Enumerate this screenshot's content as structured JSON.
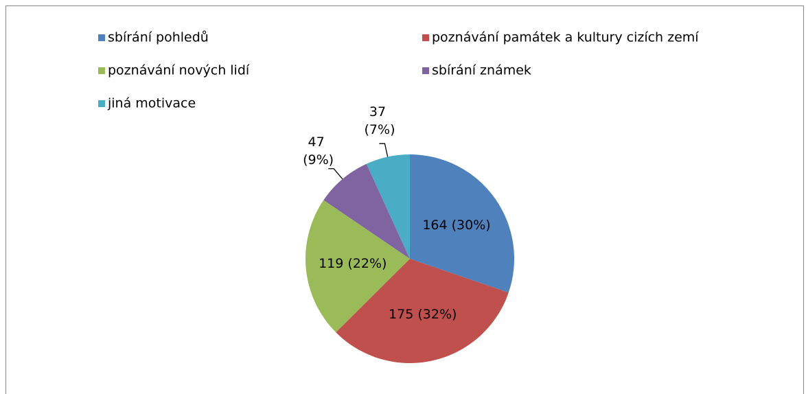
{
  "chart_data": {
    "type": "pie",
    "categories": [
      "sbírání pohledů",
      "poznávání památek a kultury cizích zemí",
      "poznávání nových lidí",
      "sbírání známek",
      "jiná motivace"
    ],
    "values": [
      164,
      175,
      119,
      47,
      37
    ],
    "value_labels": [
      "164 (30%)",
      "175 (32%)",
      "119 (22%)",
      "47 (9%)",
      "37 (7%)"
    ],
    "colors": [
      "#4f81bd",
      "#c0504d",
      "#9bbb59",
      "#8064a2",
      "#4bacc6"
    ],
    "legend": "top"
  }
}
